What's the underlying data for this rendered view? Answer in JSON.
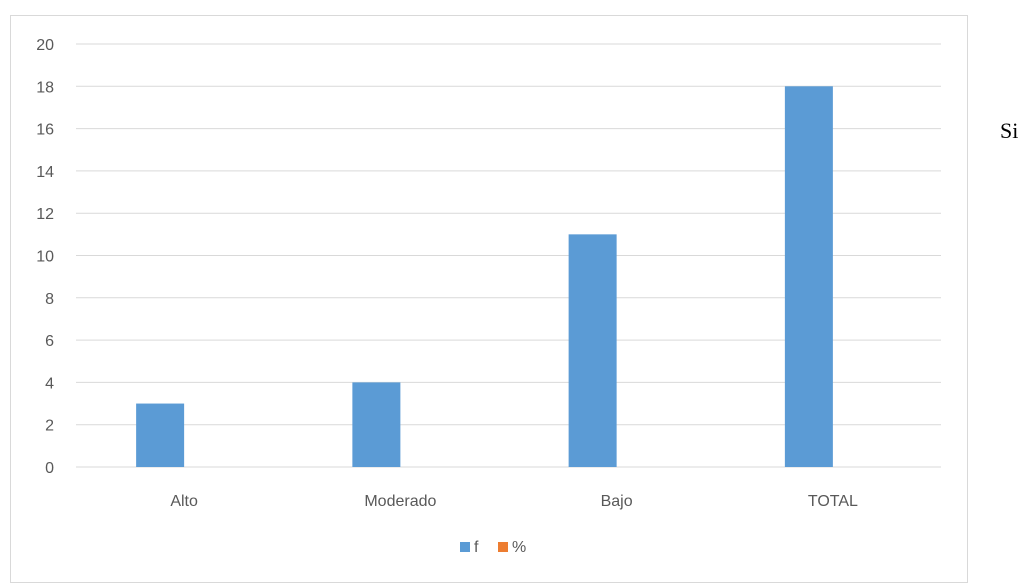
{
  "side_text": "Si",
  "colors": {
    "f": "#5b9bd5",
    "%": "#ed7d31",
    "grid": "#d9d9d9",
    "text": "#595959"
  },
  "chart_data": {
    "type": "bar",
    "categories": [
      "Alto",
      "Moderado",
      "Bajo",
      "TOTAL"
    ],
    "series": [
      {
        "name": "f",
        "values": [
          3,
          4,
          11,
          18
        ]
      },
      {
        "name": "%",
        "values": [
          0,
          0,
          0,
          0
        ]
      }
    ],
    "y_ticks": [
      "0",
      "2",
      "4",
      "6",
      "8",
      "10",
      "12",
      "14",
      "16",
      "18",
      "20"
    ],
    "ylim": [
      0,
      20
    ],
    "grid": true,
    "legend": "bottom",
    "title": "",
    "xlabel": "",
    "ylabel": ""
  }
}
